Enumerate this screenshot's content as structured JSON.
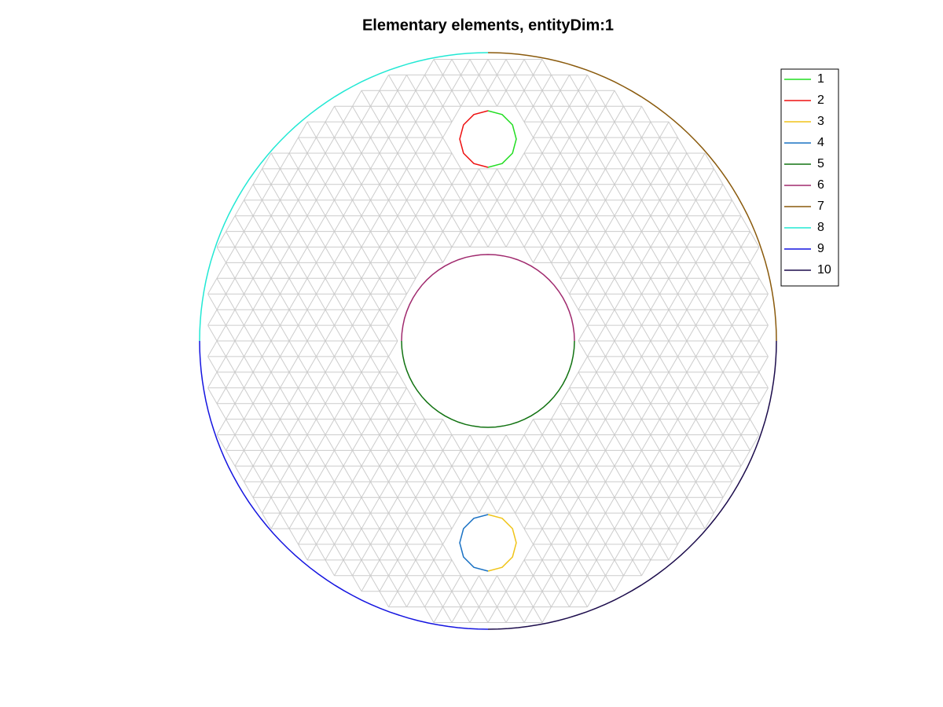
{
  "chart_data": {
    "type": "mesh",
    "title": "Elementary elements, entityDim:1",
    "series": [
      {
        "name": "1",
        "color": "#22dd22"
      },
      {
        "name": "2",
        "color": "#ee1111"
      },
      {
        "name": "3",
        "color": "#f0c419"
      },
      {
        "name": "4",
        "color": "#1a72c4"
      },
      {
        "name": "5",
        "color": "#127312"
      },
      {
        "name": "6",
        "color": "#a02a6e"
      },
      {
        "name": "7",
        "color": "#8a5a0c"
      },
      {
        "name": "8",
        "color": "#22e8d4"
      },
      {
        "name": "9",
        "color": "#1414e0"
      },
      {
        "name": "10",
        "color": "#1c0c4c"
      }
    ],
    "legend": "upper right"
  }
}
